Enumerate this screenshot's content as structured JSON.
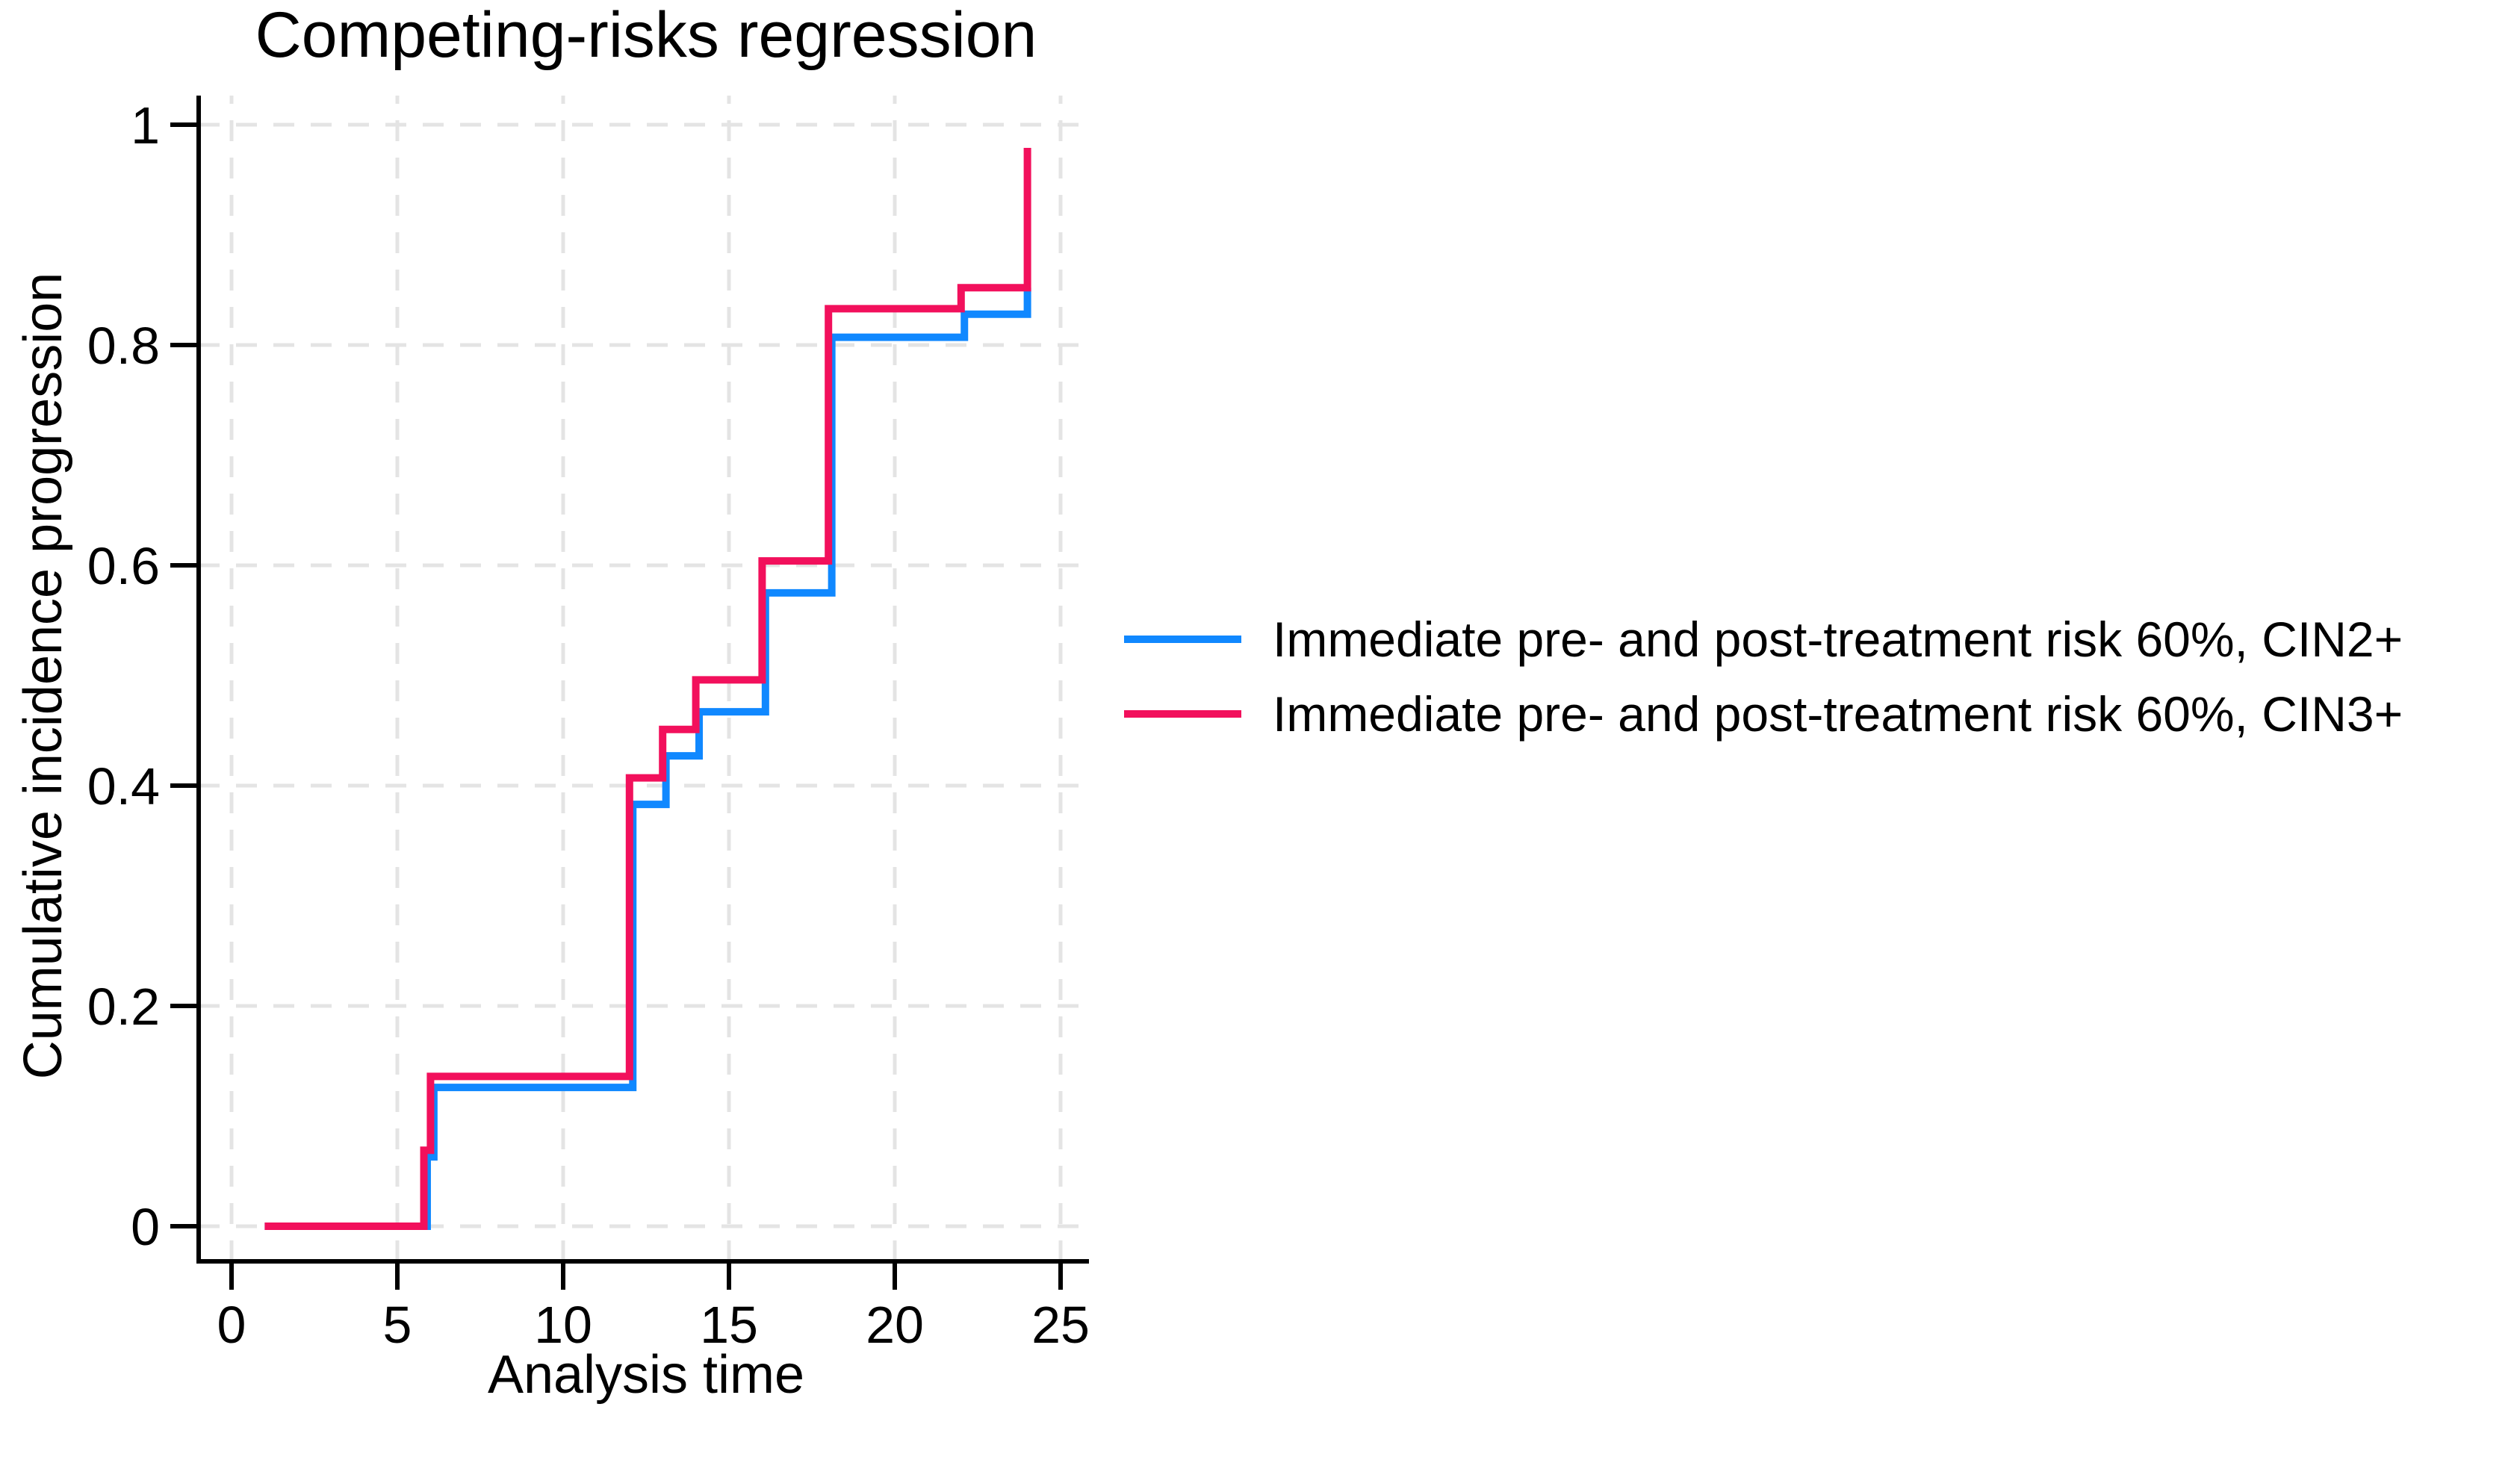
{
  "figure": {
    "title": "Competing-risks regression"
  },
  "chart_data": {
    "type": "line",
    "subtype": "step-function-cumulative-incidence",
    "title": "Competing-risks regression",
    "xlabel": "Analysis time",
    "ylabel": "Cumulative incidence progression",
    "xlim": [
      0,
      25
    ],
    "ylim": [
      0,
      1
    ],
    "xticks": [
      0,
      5,
      10,
      15,
      20,
      25
    ],
    "yticks": [
      0,
      0.2,
      0.4,
      0.6,
      0.8,
      1
    ],
    "xtick_labels": [
      "0",
      "5",
      "10",
      "15",
      "20",
      "25"
    ],
    "ytick_labels": [
      "0",
      "0.2",
      "0.4",
      "0.6",
      "0.8",
      "1"
    ],
    "grid": "dashed-both-axes",
    "legend_position": "right-outside",
    "series": [
      {
        "key": "cin2plus",
        "name": "Immediate pre- and post-treatment risk 60%, CIN2+",
        "color": "#1088ff",
        "steps": [
          [
            1,
            0
          ],
          [
            5.9,
            0.063
          ],
          [
            6.1,
            0.126
          ],
          [
            12.1,
            0.383
          ],
          [
            13.1,
            0.427
          ],
          [
            14.1,
            0.467
          ],
          [
            16.1,
            0.575
          ],
          [
            18.1,
            0.807
          ],
          [
            22.1,
            0.828
          ],
          [
            24,
            0.852
          ]
        ]
      },
      {
        "key": "cin3plus",
        "name": "Immediate pre- and post-treatment risk 60%, CIN3+",
        "color": "#f2105c",
        "steps": [
          [
            1,
            0
          ],
          [
            5.8,
            0.069
          ],
          [
            6,
            0.136
          ],
          [
            12,
            0.407
          ],
          [
            13,
            0.451
          ],
          [
            14,
            0.496
          ],
          [
            16,
            0.604
          ],
          [
            18,
            0.833
          ],
          [
            22,
            0.852
          ],
          [
            24,
            0.979
          ]
        ]
      }
    ]
  },
  "legend": {
    "entries": [
      {
        "label": "Immediate pre- and post-treatment risk 60%, CIN2+",
        "color": "#1088ff",
        "series_key": "cin2plus"
      },
      {
        "label": "Immediate pre- and post-treatment risk 60%, CIN3+",
        "color": "#f2105c",
        "series_key": "cin3plus"
      }
    ]
  },
  "style": {
    "grid_color": "#e4e4e4",
    "axis_color": "#000000",
    "background": "#ffffff",
    "line_width": 10
  }
}
